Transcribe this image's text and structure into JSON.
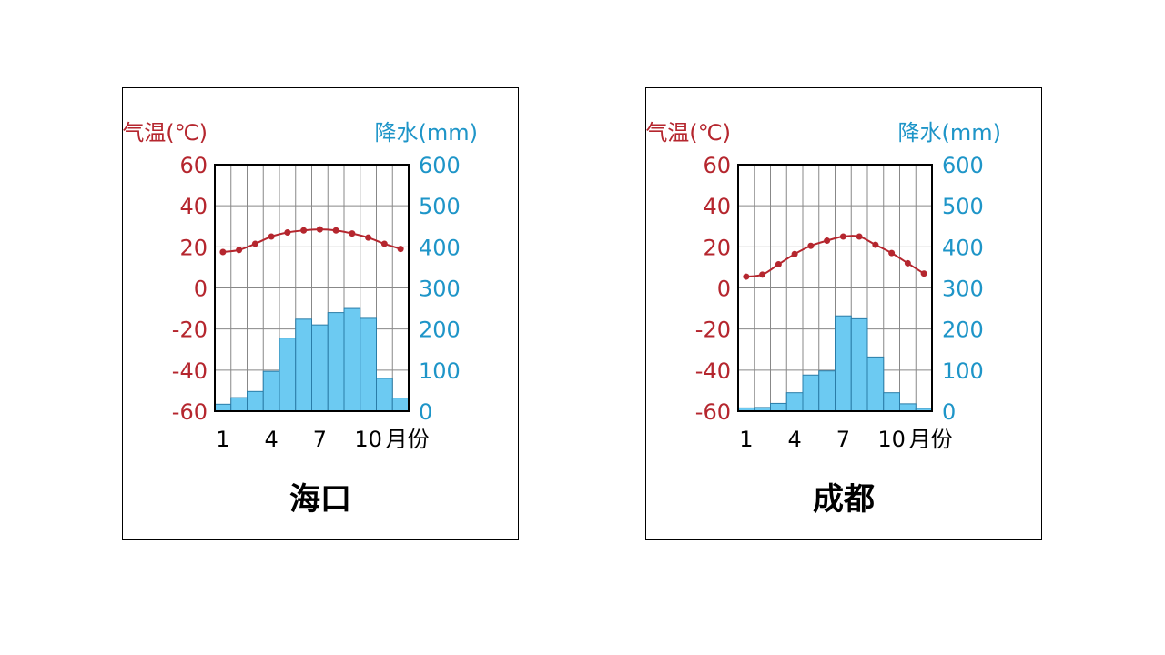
{
  "colors": {
    "temperature": "#b5262e",
    "precipitation": "#1e95c8",
    "bar_fill": "#6ccaf2",
    "bar_stroke": "#2a7da8",
    "grid": "#888888"
  },
  "chart_data": [
    {
      "type": "bar+line",
      "title": "海口",
      "left_axis_label": "气温(℃)",
      "right_axis_label": "降水(mm)",
      "x_tick_labels": [
        "1",
        "4",
        "7",
        "10"
      ],
      "x_unit": "月份",
      "months": [
        1,
        2,
        3,
        4,
        5,
        6,
        7,
        8,
        9,
        10,
        11,
        12
      ],
      "temp_ylim": [
        -60,
        60
      ],
      "temp_ticks": [
        "60",
        "40",
        "20",
        "0",
        "-20",
        "-40",
        "-60"
      ],
      "precip_ylim": [
        0,
        600
      ],
      "precip_ticks": [
        "600",
        "500",
        "400",
        "300",
        "200",
        "100",
        "0"
      ],
      "temperature": [
        17.5,
        18.5,
        21.5,
        25,
        27,
        28,
        28.5,
        28,
        26.5,
        24.5,
        21.5,
        19
      ],
      "precipitation": [
        17,
        33,
        48,
        97,
        178,
        224,
        210,
        240,
        250,
        226,
        80,
        32
      ],
      "grid": true
    },
    {
      "type": "bar+line",
      "title": "成都",
      "left_axis_label": "气温(℃)",
      "right_axis_label": "降水(mm)",
      "x_tick_labels": [
        "1",
        "4",
        "7",
        "10"
      ],
      "x_unit": "月份",
      "months": [
        1,
        2,
        3,
        4,
        5,
        6,
        7,
        8,
        9,
        10,
        11,
        12
      ],
      "temp_ylim": [
        -60,
        60
      ],
      "temp_ticks": [
        "60",
        "40",
        "20",
        "0",
        "-20",
        "-40",
        "-60"
      ],
      "precip_ylim": [
        0,
        600
      ],
      "precip_ticks": [
        "600",
        "500",
        "400",
        "300",
        "200",
        "100",
        "0"
      ],
      "temperature": [
        5.5,
        6.5,
        11.5,
        16.5,
        20.5,
        23,
        25,
        25,
        21,
        17,
        12,
        7
      ],
      "precipitation": [
        8,
        9,
        19,
        45,
        88,
        98,
        232,
        225,
        132,
        45,
        18,
        7
      ],
      "grid": true
    }
  ]
}
